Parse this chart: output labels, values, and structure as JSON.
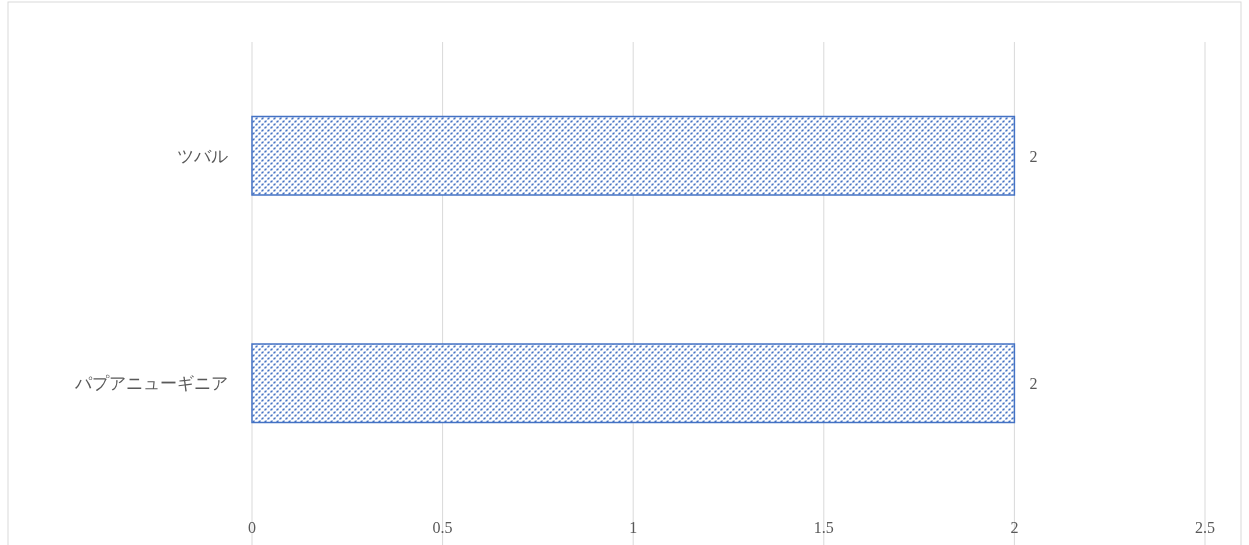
{
  "chart_data": {
    "type": "bar",
    "orientation": "horizontal",
    "categories": [
      "ツバル",
      "パプアニューギニア"
    ],
    "values": [
      2,
      2
    ],
    "color": "#4472c4",
    "xlim": [
      0,
      2.5
    ],
    "xticks": [
      0,
      0.5,
      1,
      1.5,
      2,
      2.5
    ],
    "grid": "x",
    "data_labels": true
  }
}
